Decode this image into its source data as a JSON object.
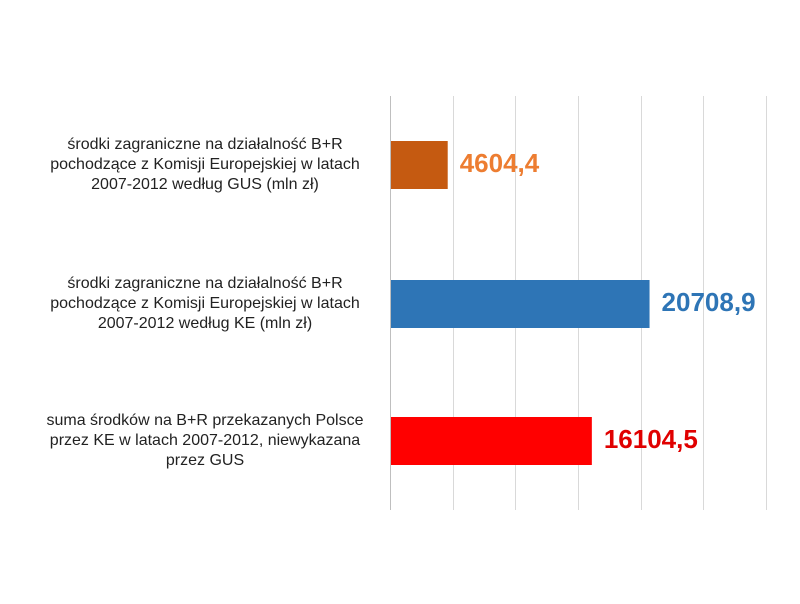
{
  "chart_data": {
    "type": "bar",
    "orientation": "horizontal",
    "categories": [
      "środki zagraniczne na działalność B+R\npochodzące z Komisji Europejskiej w latach\n2007-2012 według GUS (mln zł)",
      "środki zagraniczne na działalność B+R\npochodzące z Komisji Europejskiej w latach\n2007-2012 według KE (mln zł)",
      "suma środków na B+R przekazanych Polsce\nprzez KE w latach 2007-2012, niewykazana\nprzez GUS"
    ],
    "values": [
      4604.4,
      20708.9,
      16104.5
    ],
    "value_labels": [
      "4604,4",
      "20708,9",
      "16104,5"
    ],
    "colors": [
      "#C55A11",
      "#2E75B6",
      "#FF0000"
    ],
    "label_colors": [
      "#ED7D31",
      "#2E75B6",
      "#E00000"
    ],
    "xlim": [
      0,
      30000
    ],
    "gridline_step": 5000,
    "grid": true,
    "title": "",
    "xlabel": "",
    "ylabel": ""
  }
}
